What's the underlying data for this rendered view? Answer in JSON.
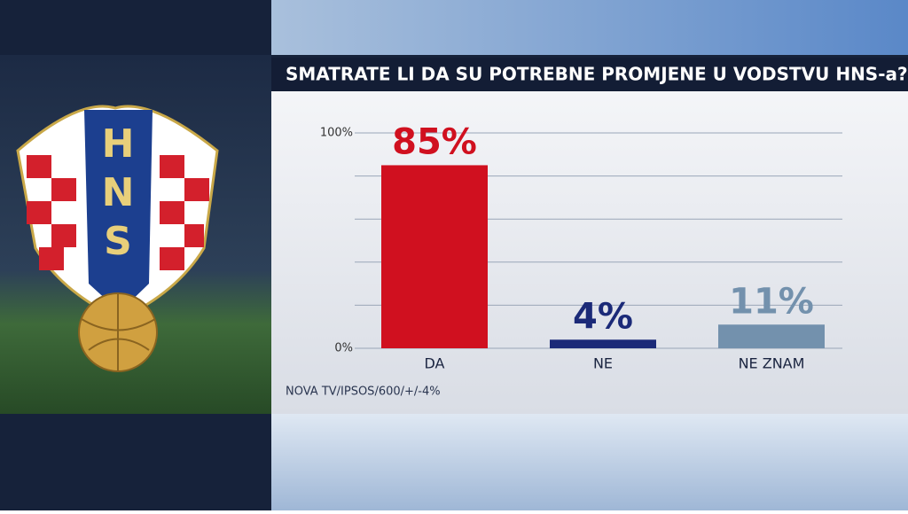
{
  "chart_data": {
    "type": "bar",
    "title": "SMATRATE LI DA SU POTREBNE PROMJENE U VODSTVU HNS-a?",
    "categories": [
      "DA",
      "NE",
      "NE ZNAM"
    ],
    "values": [
      85,
      4,
      11
    ],
    "value_labels": [
      "85%",
      "4%",
      "11%"
    ],
    "colors": [
      "#d0101f",
      "#1b2a78",
      "#7391ad"
    ],
    "ylim": [
      0,
      100
    ],
    "yticks": [
      {
        "value": 0,
        "label": "0%"
      },
      {
        "value": 20,
        "label": null
      },
      {
        "value": 40,
        "label": null
      },
      {
        "value": 60,
        "label": null
      },
      {
        "value": 80,
        "label": null
      },
      {
        "value": 100,
        "label": "100%"
      }
    ],
    "grid": true,
    "source": "NOVA TV/IPSOS/600/+/-4%"
  },
  "logo": {
    "letters": [
      "H",
      "N",
      "S"
    ]
  }
}
